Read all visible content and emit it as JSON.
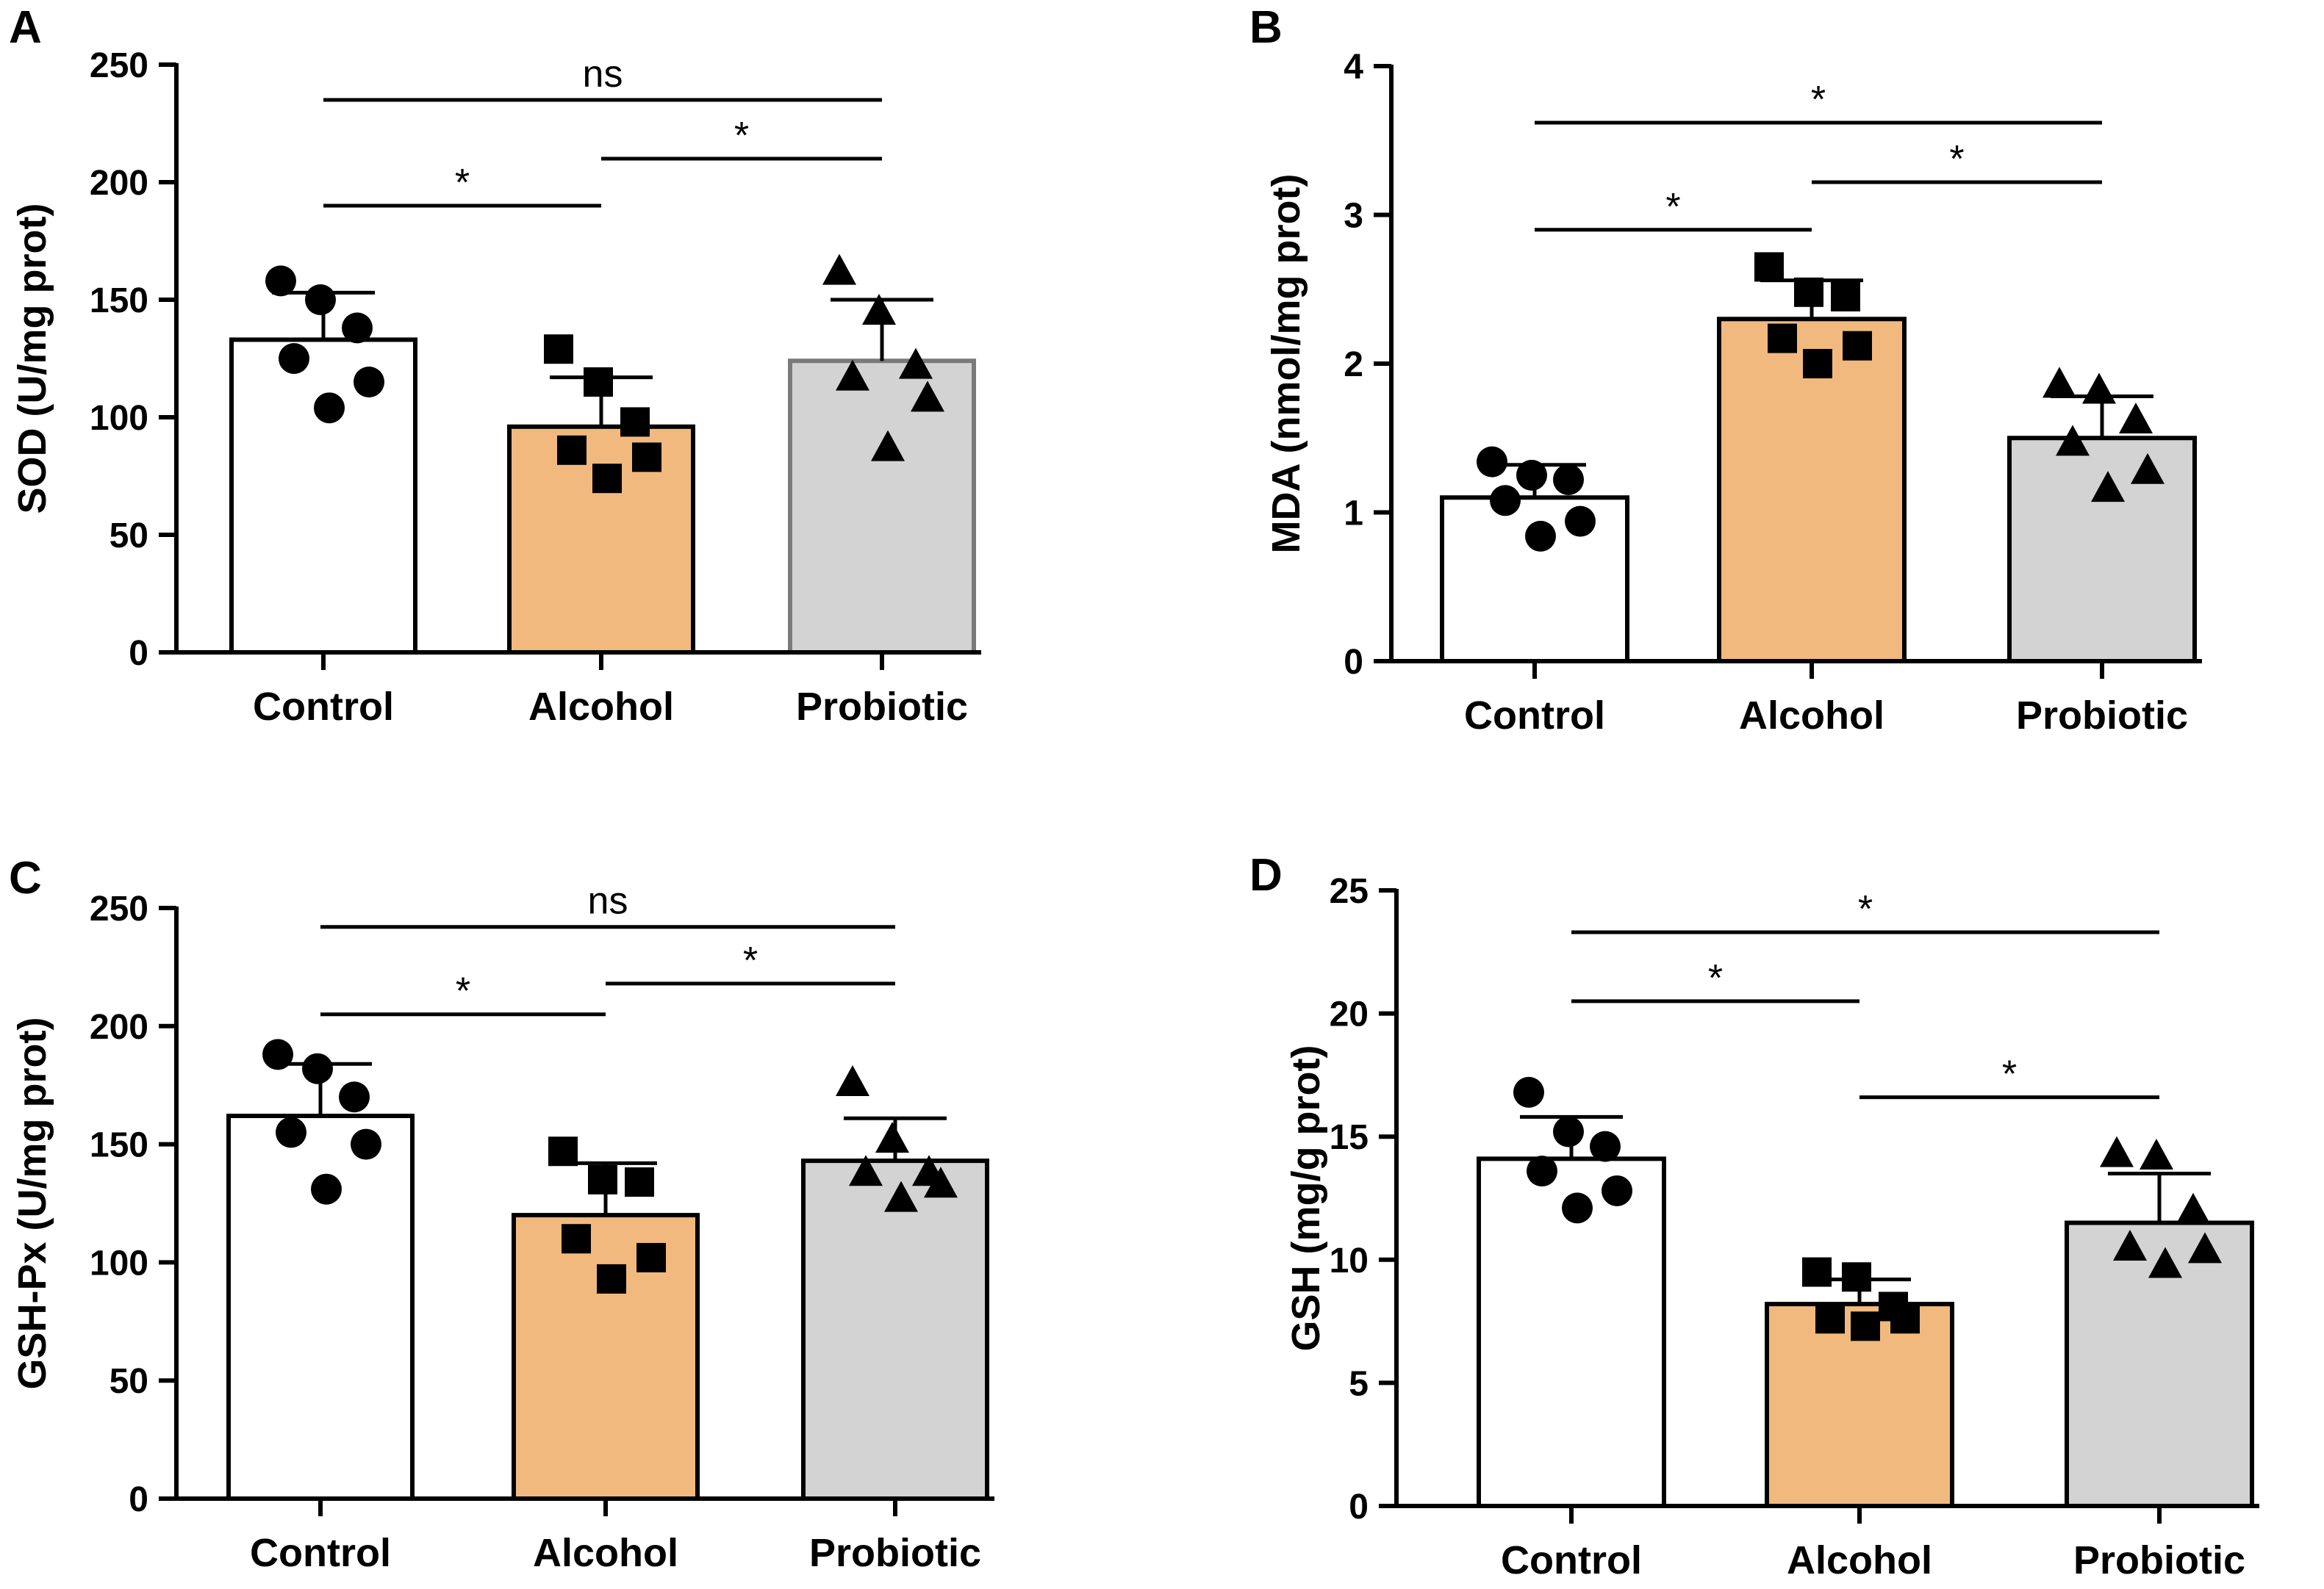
{
  "figure": {
    "colors": {
      "control": "#ffffff",
      "alcohol": "#f2b97e",
      "probiotic": "#d3d3d3",
      "axis": "#000000"
    }
  },
  "chart_data": [
    {
      "panel": "A",
      "type": "bar",
      "title": "",
      "xlabel": "",
      "ylabel": "SOD (U/mg prot)",
      "ylim": [
        0,
        250
      ],
      "yticks": [
        0,
        50,
        100,
        150,
        200,
        250
      ],
      "categories": [
        "Control",
        "Alcohol",
        "Probiotic"
      ],
      "values": [
        133,
        96,
        124
      ],
      "errors": [
        20,
        21,
        26
      ],
      "points": [
        [
          158,
          150,
          138,
          125,
          115,
          104
        ],
        [
          129,
          115,
          98,
          86,
          83,
          74
        ],
        [
          162,
          145,
          122,
          117,
          108,
          87
        ]
      ],
      "markers": [
        "circle",
        "square",
        "triangle"
      ],
      "significance": [
        {
          "from": 0,
          "to": 2,
          "label": "ns",
          "y": 235
        },
        {
          "from": 1,
          "to": 2,
          "label": "*",
          "y": 210
        },
        {
          "from": 0,
          "to": 1,
          "label": "*",
          "y": 190
        }
      ]
    },
    {
      "panel": "B",
      "type": "bar",
      "title": "",
      "xlabel": "",
      "ylabel": "MDA (nmol/mg prot)",
      "ylim": [
        0,
        4
      ],
      "yticks": [
        0,
        1,
        2,
        3,
        4
      ],
      "categories": [
        "Control",
        "Alcohol",
        "Probiotic"
      ],
      "values": [
        1.1,
        2.3,
        1.5
      ],
      "errors": [
        0.22,
        0.26,
        0.28
      ],
      "points": [
        [
          1.34,
          1.25,
          1.22,
          1.08,
          0.94,
          0.84
        ],
        [
          2.65,
          2.48,
          2.45,
          2.17,
          2.12,
          2.0
        ],
        [
          1.86,
          1.82,
          1.62,
          1.47,
          1.28,
          1.16
        ]
      ],
      "markers": [
        "circle",
        "square",
        "triangle"
      ],
      "significance": [
        {
          "from": 0,
          "to": 2,
          "label": "*",
          "y": 3.62
        },
        {
          "from": 1,
          "to": 2,
          "label": "*",
          "y": 3.22
        },
        {
          "from": 0,
          "to": 1,
          "label": "*",
          "y": 2.9
        }
      ]
    },
    {
      "panel": "C",
      "type": "bar",
      "title": "",
      "xlabel": "",
      "ylabel": "GSH-Px (U/mg prot)",
      "ylim": [
        0,
        250
      ],
      "yticks": [
        0,
        50,
        100,
        150,
        200,
        250
      ],
      "categories": [
        "Control",
        "Alcohol",
        "Probiotic"
      ],
      "values": [
        162,
        120,
        143
      ],
      "errors": [
        22,
        22,
        18
      ],
      "points": [
        [
          188,
          182,
          170,
          155,
          150,
          131
        ],
        [
          147,
          135,
          134,
          110,
          102,
          93
        ],
        [
          176,
          152,
          138,
          138,
          133,
          127
        ]
      ],
      "markers": [
        "circle",
        "square",
        "triangle"
      ],
      "significance": [
        {
          "from": 0,
          "to": 2,
          "label": "ns",
          "y": 242
        },
        {
          "from": 1,
          "to": 2,
          "label": "*",
          "y": 218
        },
        {
          "from": 0,
          "to": 1,
          "label": "*",
          "y": 205
        }
      ]
    },
    {
      "panel": "D",
      "type": "bar",
      "title": "",
      "xlabel": "",
      "ylabel": "GSH (mg/g prot)",
      "ylim": [
        0,
        25
      ],
      "yticks": [
        0,
        5,
        10,
        15,
        20,
        25
      ],
      "categories": [
        "Control",
        "Alcohol",
        "Probiotic"
      ],
      "values": [
        14.1,
        8.2,
        11.5
      ],
      "errors": [
        1.7,
        1.0,
        2.0
      ],
      "points": [
        [
          16.8,
          15.2,
          14.6,
          13.6,
          12.8,
          12.1
        ],
        [
          9.5,
          9.3,
          8.1,
          7.6,
          7.6,
          7.3
        ],
        [
          14.3,
          14.2,
          12.0,
          10.5,
          10.4,
          9.8
        ]
      ],
      "markers": [
        "circle",
        "square",
        "triangle"
      ],
      "significance": [
        {
          "from": 0,
          "to": 2,
          "label": "*",
          "y": 23.3
        },
        {
          "from": 0,
          "to": 1,
          "label": "*",
          "y": 20.5
        },
        {
          "from": 1,
          "to": 2,
          "label": "*",
          "y": 16.6
        }
      ]
    }
  ]
}
